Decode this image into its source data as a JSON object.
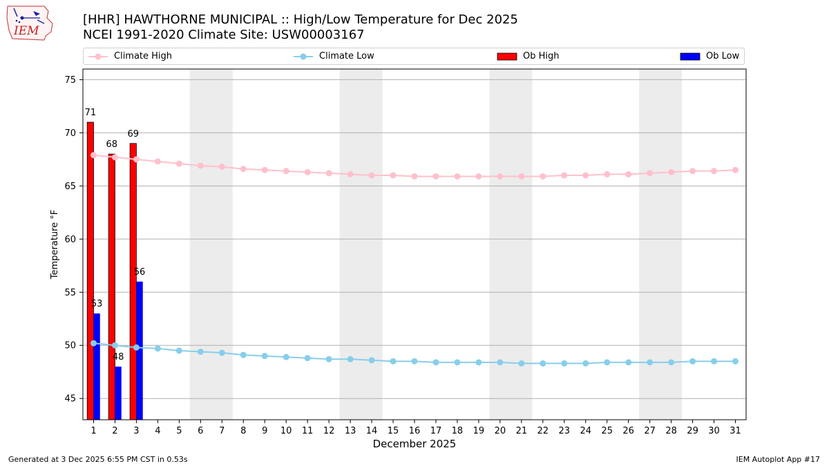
{
  "header": {
    "title": "[HHR] HAWTHORNE MUNICIPAL :: High/Low Temperature for Dec 2025",
    "subtitle": "NCEI 1991-2020 Climate Site: USW00003167"
  },
  "logo": {
    "text": "IEM",
    "icon": "iem-logo-icon"
  },
  "footer": {
    "generated": "Generated at 3 Dec 2025 6:55 PM CST in 0.53s",
    "app": "IEM Autoplot App #17"
  },
  "colors": {
    "climate_high": "#ffc0cb",
    "climate_low": "#87ceeb",
    "ob_high": "#ff0000",
    "ob_low": "#0000ff",
    "weekend_band": "#ececec",
    "grid": "#b0b0b0"
  },
  "chart_data": {
    "type": "bar",
    "title": "[HHR] HAWTHORNE MUNICIPAL :: High/Low Temperature for Dec 2025",
    "subtitle": "NCEI 1991-2020 Climate Site: USW00003167",
    "xlabel": "December 2025",
    "ylabel": "Temperature °F",
    "ylim": [
      43,
      76
    ],
    "yticks": [
      45,
      50,
      55,
      60,
      65,
      70,
      75
    ],
    "grid": "y",
    "legend_position": "top",
    "days": [
      1,
      2,
      3,
      4,
      5,
      6,
      7,
      8,
      9,
      10,
      11,
      12,
      13,
      14,
      15,
      16,
      17,
      18,
      19,
      20,
      21,
      22,
      23,
      24,
      25,
      26,
      27,
      28,
      29,
      30,
      31
    ],
    "weekend_bands": [
      [
        6,
        7
      ],
      [
        13,
        14
      ],
      [
        20,
        21
      ],
      [
        27,
        28
      ]
    ],
    "series": [
      {
        "name": "Climate High",
        "kind": "line",
        "values": [
          67.9,
          67.7,
          67.5,
          67.3,
          67.1,
          66.9,
          66.8,
          66.6,
          66.5,
          66.4,
          66.3,
          66.2,
          66.1,
          66.0,
          66.0,
          65.9,
          65.9,
          65.9,
          65.9,
          65.9,
          65.9,
          65.9,
          66.0,
          66.0,
          66.1,
          66.1,
          66.2,
          66.3,
          66.4,
          66.4,
          66.5
        ]
      },
      {
        "name": "Climate Low",
        "kind": "line",
        "values": [
          50.2,
          50.0,
          49.8,
          49.7,
          49.5,
          49.4,
          49.3,
          49.1,
          49.0,
          48.9,
          48.8,
          48.7,
          48.7,
          48.6,
          48.5,
          48.5,
          48.4,
          48.4,
          48.4,
          48.4,
          48.3,
          48.3,
          48.3,
          48.3,
          48.4,
          48.4,
          48.4,
          48.4,
          48.5,
          48.5,
          48.5
        ]
      },
      {
        "name": "Ob High",
        "kind": "bar",
        "values": [
          71,
          68,
          69
        ]
      },
      {
        "name": "Ob Low",
        "kind": "bar",
        "values": [
          53,
          48,
          56
        ]
      }
    ]
  }
}
